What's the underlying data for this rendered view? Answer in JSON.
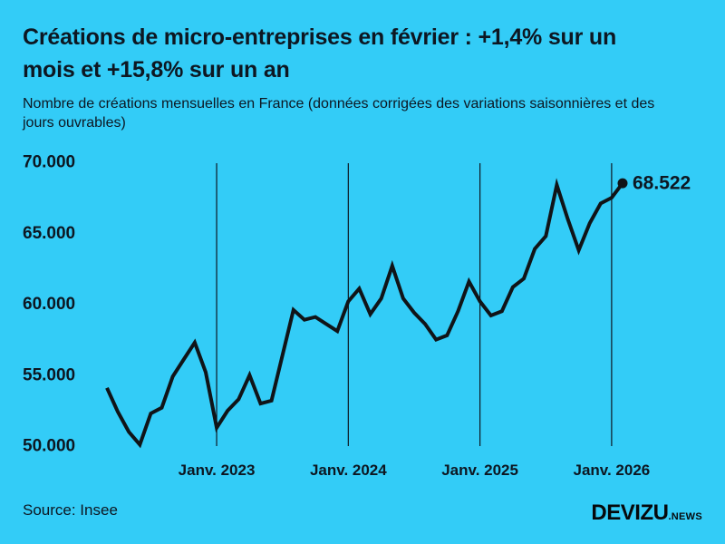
{
  "title": "Créations de micro-entreprises en février : +1,4% sur un mois et +15,8% sur un an",
  "subtitle": "Nombre de créations mensuelles en France (données corrigées des variations saisonnières et des jours ouvrables)",
  "source": "Source: Insee",
  "logo": {
    "main": "DEVIZU",
    "suffix": ".NEWS"
  },
  "colors": {
    "background": "#33CCF7",
    "text": "#0D1722",
    "line": "#101418",
    "gridline": "#0D1722"
  },
  "chart_data": {
    "type": "line",
    "title": "Créations de micro-entreprises en février : +1,4% sur un mois et +15,8% sur un an",
    "subtitle": "Nombre de créations mensuelles en France (données corrigées des variations saisonnières et des jours ouvrables)",
    "xlabel": "",
    "ylabel": "Nombre de créations mensuelles",
    "ylim": [
      50000,
      70000
    ],
    "grid": "vertical-yearly",
    "legend": "none",
    "x": [
      "2022-03",
      "2022-04",
      "2022-05",
      "2022-06",
      "2022-07",
      "2022-08",
      "2022-09",
      "2022-10",
      "2022-11",
      "2022-12",
      "2023-01",
      "2023-02",
      "2023-03",
      "2023-04",
      "2023-05",
      "2023-06",
      "2023-07",
      "2023-08",
      "2023-09",
      "2023-10",
      "2023-11",
      "2023-12",
      "2024-01",
      "2024-02",
      "2024-03",
      "2024-04",
      "2024-05",
      "2024-06",
      "2024-07",
      "2024-08",
      "2024-09",
      "2024-10",
      "2024-11",
      "2024-12",
      "2025-01",
      "2025-02",
      "2025-03",
      "2025-04",
      "2025-05",
      "2025-06",
      "2025-07",
      "2025-08",
      "2025-09",
      "2025-10",
      "2025-11",
      "2025-12",
      "2026-01",
      "2026-02"
    ],
    "values": [
      54100,
      52400,
      51000,
      50100,
      52300,
      52700,
      54900,
      56100,
      57300,
      55200,
      51300,
      52500,
      53300,
      55000,
      53000,
      53200,
      56400,
      59600,
      58900,
      59100,
      58600,
      58100,
      60200,
      61100,
      59300,
      60400,
      62700,
      60400,
      59400,
      58600,
      57500,
      57800,
      59500,
      61600,
      60200,
      59200,
      59500,
      61200,
      61800,
      63900,
      64800,
      68400,
      66000,
      63800,
      65700,
      67100,
      67500,
      68522
    ],
    "last_value": 68522,
    "end_label": "68.522",
    "y_ticks": [
      {
        "value": 70000,
        "label": "70.000"
      },
      {
        "value": 65000,
        "label": "65.000"
      },
      {
        "value": 60000,
        "label": "60.000"
      },
      {
        "value": 55000,
        "label": "55.000"
      },
      {
        "value": 50000,
        "label": "50.000"
      }
    ],
    "x_ticks": [
      {
        "month": "2023-01",
        "label": "Janv. 2023"
      },
      {
        "month": "2024-01",
        "label": "Janv. 2024"
      },
      {
        "month": "2025-01",
        "label": "Janv. 2025"
      },
      {
        "month": "2026-01",
        "label": "Janv. 2026"
      }
    ]
  }
}
